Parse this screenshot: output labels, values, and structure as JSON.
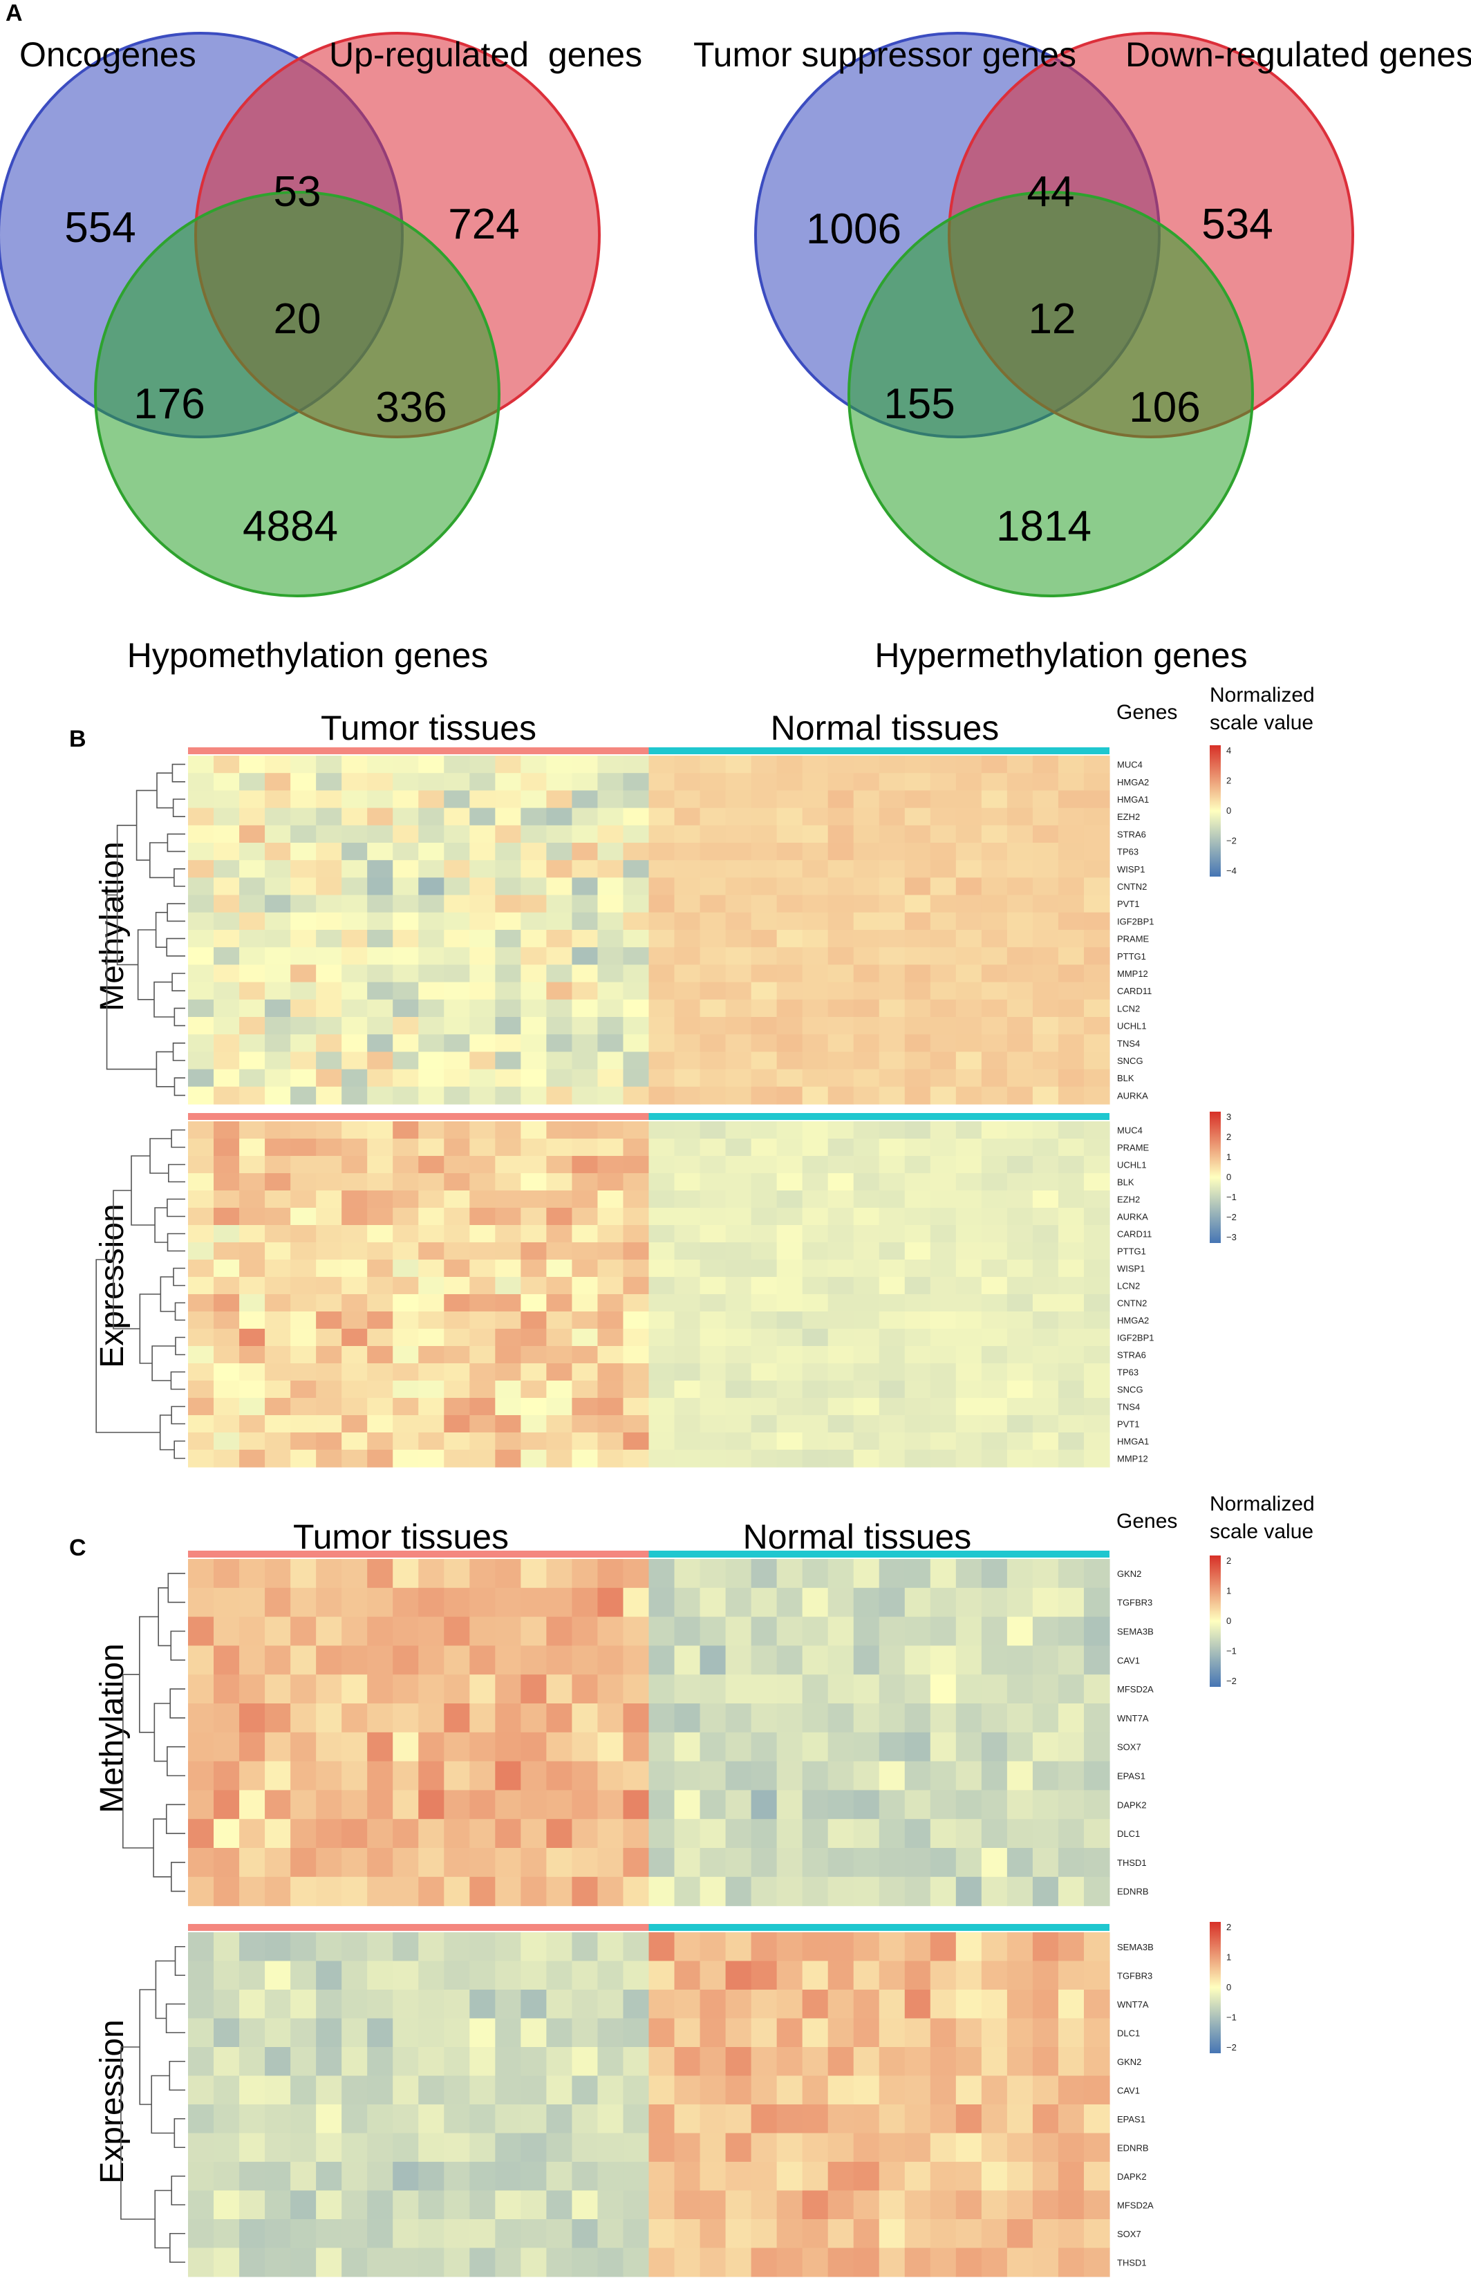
{
  "panels": {
    "A": {
      "letter": "A",
      "left_venn": {
        "labels": [
          "Oncogenes",
          "Up-regulated  genes",
          "Hypomethylation genes"
        ],
        "counts": {
          "only_1": "554",
          "only_2": "724",
          "only_3": "4884",
          "1_2": "53",
          "1_3": "176",
          "2_3": "336",
          "all": "20"
        }
      },
      "right_venn": {
        "labels": [
          "Tumor suppressor genes",
          "Down-regulated genes",
          "Hypermethylation genes"
        ],
        "counts": {
          "only_1": "1006",
          "only_2": "534",
          "only_3": "1814",
          "1_2": "44",
          "1_3": "155",
          "2_3": "106",
          "all": "12"
        }
      },
      "colors": {
        "c1": "#3b4cc0",
        "c2": "#dc2f3a",
        "c3": "#2ea32e"
      }
    },
    "B": {
      "letter": "B",
      "group_labels": [
        "Tumor tissues",
        "Normal tissues"
      ],
      "genes_header": "Genes",
      "legend_title": "Normalized\nscale value",
      "methylation": {
        "row_title": "Methylation",
        "genes": [
          "MUC4",
          "HMGA2",
          "HMGA1",
          "EZH2",
          "STRA6",
          "TP63",
          "WISP1",
          "CNTN2",
          "PVT1",
          "IGF2BP1",
          "PRAME",
          "PTTG1",
          "MMP12",
          "CARD11",
          "LCN2",
          "UCHL1",
          "TNS4",
          "SNCG",
          "BLK",
          "AURKA"
        ],
        "legend_ticks": [
          "4",
          "2",
          "0",
          "−2",
          "−4"
        ],
        "scale": {
          "min": -4,
          "max": 4
        }
      },
      "expression": {
        "row_title": "Expression",
        "genes": [
          "MUC4",
          "PRAME",
          "UCHL1",
          "BLK",
          "EZH2",
          "AURKA",
          "CARD11",
          "PTTG1",
          "WISP1",
          "LCN2",
          "CNTN2",
          "HMGA2",
          "IGF2BP1",
          "STRA6",
          "TP63",
          "SNCG",
          "TNS4",
          "PVT1",
          "HMGA1",
          "MMP12"
        ],
        "legend_ticks": [
          "3",
          "2",
          "1",
          "0",
          "−1",
          "−2",
          "−3"
        ],
        "scale": {
          "min": -3,
          "max": 3
        }
      }
    },
    "C": {
      "letter": "C",
      "group_labels": [
        "Tumor tissues",
        "Normal tissues"
      ],
      "genes_header": "Genes",
      "legend_title": "Normalized\nscale value",
      "methylation": {
        "row_title": "Methylation",
        "genes": [
          "GKN2",
          "TGFBR3",
          "SEMA3B",
          "CAV1",
          "MFSD2A",
          "WNT7A",
          "SOX7",
          "EPAS1",
          "DAPK2",
          "DLC1",
          "THSD1",
          "EDNRB"
        ],
        "legend_ticks": [
          "2",
          "1",
          "0",
          "−1",
          "−2"
        ],
        "scale": {
          "min": -2.3,
          "max": 2.3
        }
      },
      "expression": {
        "row_title": "Expression",
        "genes": [
          "SEMA3B",
          "TGFBR3",
          "WNT7A",
          "DLC1",
          "GKN2",
          "CAV1",
          "EPAS1",
          "EDNRB",
          "DAPK2",
          "MFSD2A",
          "SOX7",
          "THSD1"
        ],
        "legend_ticks": [
          "2",
          "1",
          "0",
          "−1",
          "−2"
        ],
        "scale": {
          "min": -2.3,
          "max": 2.3
        }
      }
    }
  },
  "colors": {
    "tumor_bar": "#f4877f",
    "normal_bar": "#1fc7cf",
    "dendrogram": "#555555",
    "scale_high": "#d73027",
    "scale_mid": "#ffffbf",
    "scale_low": "#4575b4"
  },
  "chart_data": [
    {
      "type": "heatmap",
      "panel": "B-Methylation",
      "columns": {
        "tumor": 18,
        "normal": 18
      },
      "rows": [
        "MUC4",
        "HMGA2",
        "HMGA1",
        "EZH2",
        "STRA6",
        "TP63",
        "WISP1",
        "CNTN2",
        "PVT1",
        "IGF2BP1",
        "PRAME",
        "PTTG1",
        "MMP12",
        "CARD11",
        "LCN2",
        "UCHL1",
        "TNS4",
        "SNCG",
        "BLK",
        "AURKA"
      ],
      "pattern": {
        "tumor_mean": -0.3,
        "tumor_spread": 1.8,
        "normal_mean": 0.9,
        "normal_spread": 0.45
      }
    },
    {
      "type": "heatmap",
      "panel": "B-Expression",
      "columns": {
        "tumor": 18,
        "normal": 18
      },
      "rows": [
        "MUC4",
        "PRAME",
        "UCHL1",
        "BLK",
        "EZH2",
        "AURKA",
        "CARD11",
        "PTTG1",
        "WISP1",
        "LCN2",
        "CNTN2",
        "HMGA2",
        "IGF2BP1",
        "STRA6",
        "TP63",
        "SNCG",
        "TNS4",
        "PVT1",
        "HMGA1",
        "MMP12"
      ],
      "pattern": {
        "tumor_mean": 0.6,
        "tumor_spread": 1.2,
        "normal_mean": -0.35,
        "normal_spread": 0.35
      }
    },
    {
      "type": "heatmap",
      "panel": "C-Methylation",
      "columns": {
        "tumor": 18,
        "normal": 18
      },
      "rows": [
        "GKN2",
        "TGFBR3",
        "SEMA3B",
        "CAV1",
        "MFSD2A",
        "WNT7A",
        "SOX7",
        "EPAS1",
        "DAPK2",
        "DLC1",
        "THSD1",
        "EDNRB"
      ],
      "pattern": {
        "tumor_mean": 0.75,
        "tumor_spread": 0.8,
        "normal_mean": -0.55,
        "normal_spread": 0.7
      }
    },
    {
      "type": "heatmap",
      "panel": "C-Expression",
      "columns": {
        "tumor": 18,
        "normal": 18
      },
      "rows": [
        "SEMA3B",
        "TGFBR3",
        "WNT7A",
        "DLC1",
        "GKN2",
        "CAV1",
        "EPAS1",
        "EDNRB",
        "DAPK2",
        "MFSD2A",
        "SOX7",
        "THSD1"
      ],
      "pattern": {
        "tumor_mean": -0.55,
        "tumor_spread": 0.6,
        "normal_mean": 0.7,
        "normal_spread": 0.7
      }
    }
  ]
}
